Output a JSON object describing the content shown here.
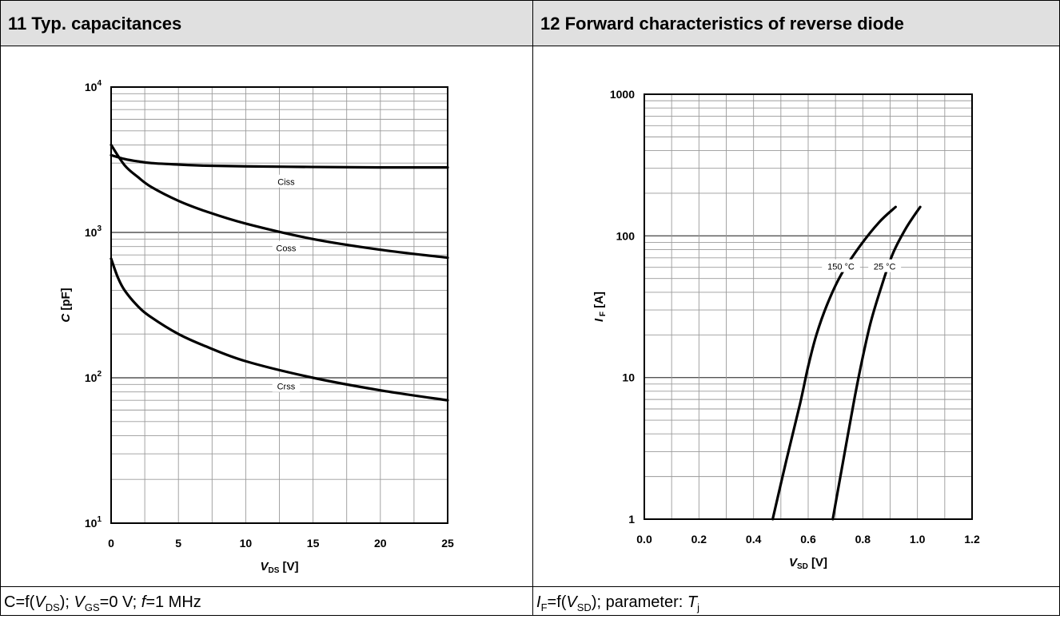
{
  "panels": [
    {
      "title": "11 Typ. capacitances",
      "caption_parts": [
        "C=f(",
        "V",
        "DS",
        ");  ",
        "V",
        "GS",
        "=0 V; ",
        "f",
        "=1 MHz"
      ]
    },
    {
      "title": "12 Forward characteristics of reverse diode",
      "caption_parts": [
        "I",
        "F",
        "=f(",
        "V",
        "SD",
        "); parameter:  ",
        "T",
        "j"
      ]
    }
  ],
  "chart_data": [
    {
      "type": "line",
      "title": "",
      "xlabel": "V_DS [V]",
      "xlabel_main": "V",
      "xlabel_sub": "DS",
      "xlabel_unit": " [V]",
      "ylabel": "C  [pF]",
      "ylabel_main": "C",
      "ylabel_unit": "  [pF]",
      "xlim": [
        0,
        25
      ],
      "ylim": [
        10,
        10000
      ],
      "yscale": "log",
      "x_ticks": [
        0,
        5,
        10,
        15,
        20,
        25
      ],
      "x_tick_labels": [
        "0",
        "5",
        "10",
        "15",
        "20",
        "25"
      ],
      "y_ticks": [
        10,
        100,
        1000,
        10000
      ],
      "y_tick_labels": [
        {
          "base": "10",
          "exp": "1"
        },
        {
          "base": "10",
          "exp": "2"
        },
        {
          "base": "10",
          "exp": "3"
        },
        {
          "base": "10",
          "exp": "4"
        }
      ],
      "grid": true,
      "series": [
        {
          "name": "Ciss",
          "label_at": 13,
          "x": [
            0,
            1,
            2,
            3,
            5,
            7,
            10,
            15,
            20,
            25
          ],
          "y": [
            3400,
            3200,
            3080,
            3000,
            2930,
            2880,
            2850,
            2820,
            2800,
            2800
          ]
        },
        {
          "name": "Coss",
          "label_at": 13,
          "x": [
            0,
            1,
            2,
            3,
            5,
            7,
            10,
            15,
            20,
            25
          ],
          "y": [
            4000,
            2900,
            2400,
            2050,
            1650,
            1400,
            1150,
            900,
            760,
            670
          ]
        },
        {
          "name": "Crss",
          "label_at": 13,
          "x": [
            0,
            0.5,
            1,
            2,
            3,
            5,
            7,
            10,
            15,
            20,
            25
          ],
          "y": [
            660,
            490,
            400,
            310,
            260,
            200,
            165,
            130,
            100,
            82,
            70
          ]
        }
      ]
    },
    {
      "type": "line",
      "title": "",
      "xlabel": "V_SD [V]",
      "xlabel_main": "V",
      "xlabel_sub": "SD",
      "xlabel_unit": " [V]",
      "ylabel": "I_F [A]",
      "ylabel_main": "I",
      "ylabel_sub": "F",
      "ylabel_unit": " [A]",
      "xlim": [
        0,
        1.2
      ],
      "ylim": [
        1,
        1000
      ],
      "yscale": "log",
      "x_ticks": [
        0,
        0.2,
        0.4,
        0.6,
        0.8,
        1.0,
        1.2
      ],
      "x_tick_labels": [
        "0.0",
        "0.2",
        "0.4",
        "0.6",
        "0.8",
        "1.0",
        "1.2"
      ],
      "y_ticks": [
        1,
        10,
        100,
        1000
      ],
      "y_tick_labels": [
        {
          "base": "1"
        },
        {
          "base": "10"
        },
        {
          "base": "100"
        },
        {
          "base": "1000"
        }
      ],
      "grid": true,
      "series": [
        {
          "name": "150 °C",
          "label_xy": [
            0.72,
            60
          ],
          "x": [
            0.47,
            0.52,
            0.57,
            0.6,
            0.63,
            0.67,
            0.72,
            0.79,
            0.86,
            0.92
          ],
          "y": [
            1,
            2.6,
            6.5,
            12,
            20,
            33,
            53,
            85,
            125,
            160
          ]
        },
        {
          "name": "25 °C",
          "label_xy": [
            0.88,
            60
          ],
          "x": [
            0.69,
            0.73,
            0.77,
            0.8,
            0.83,
            0.87,
            0.91,
            0.96,
            1.01
          ],
          "y": [
            1,
            2.7,
            7.2,
            14,
            25,
            45,
            75,
            115,
            160
          ]
        }
      ]
    }
  ]
}
